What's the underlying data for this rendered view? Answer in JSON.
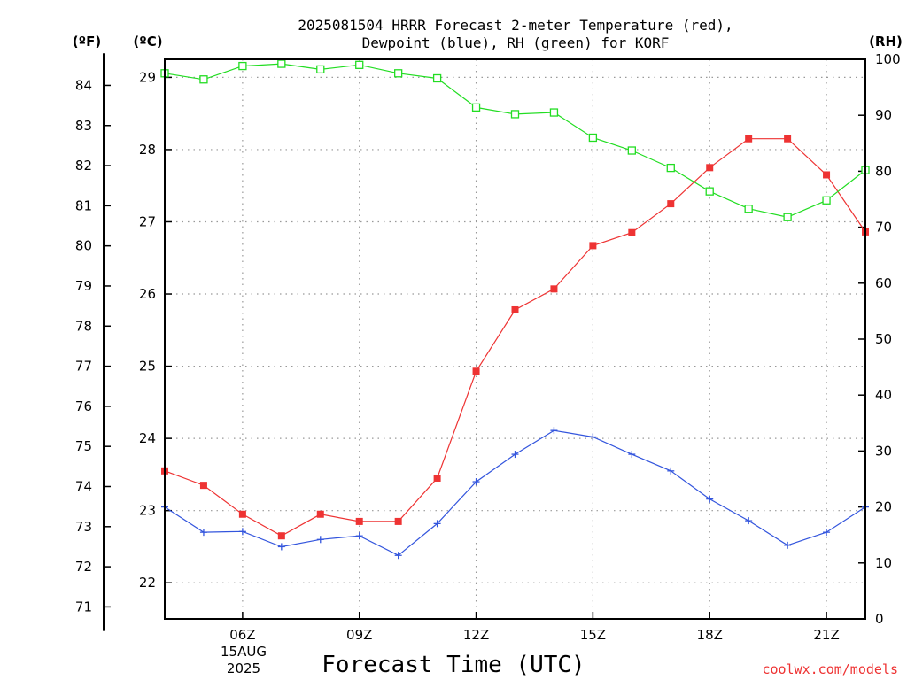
{
  "chart_data": {
    "type": "line",
    "title_line1": "2025081504 HRRR Forecast 2-meter Temperature (red),",
    "title_line2": "Dewpoint (blue), RH (green) for KORF",
    "xlabel": "Forecast Time (UTC)",
    "date_label_day": "15AUG",
    "date_label_year": "2025",
    "unit_f": "(ºF)",
    "unit_c": "(ºC)",
    "unit_rh": "(RH)",
    "credit": "coolwx.com/models",
    "x_hours": [
      4,
      5,
      6,
      7,
      8,
      9,
      10,
      11,
      12,
      13,
      14,
      15,
      16,
      17,
      18,
      19,
      20,
      21,
      22
    ],
    "x_tick_labels": [
      "06Z",
      "09Z",
      "12Z",
      "15Z",
      "18Z",
      "21Z"
    ],
    "x_tick_hours": [
      6,
      9,
      12,
      15,
      18,
      21
    ],
    "x_range_hours": [
      4,
      22
    ],
    "celsius_ticks": [
      22,
      23,
      24,
      25,
      26,
      27,
      28,
      29
    ],
    "celsius_range": [
      21.5,
      29.25
    ],
    "fahrenheit_ticks": [
      71,
      72,
      73,
      74,
      75,
      76,
      77,
      78,
      79,
      80,
      81,
      82,
      83,
      84
    ],
    "rh_ticks": [
      0,
      10,
      20,
      30,
      40,
      50,
      60,
      70,
      80,
      90,
      100
    ],
    "rh_range": [
      0,
      100
    ],
    "grid": true,
    "series": [
      {
        "name": "Temperature",
        "unit": "C",
        "color": "#ee3333",
        "marker": "filled-square",
        "values": [
          23.55,
          23.35,
          22.95,
          22.65,
          22.95,
          22.85,
          22.85,
          23.45,
          24.93,
          25.78,
          26.07,
          26.67,
          26.85,
          27.25,
          27.75,
          28.15,
          28.15,
          27.65,
          26.86
        ]
      },
      {
        "name": "Dewpoint",
        "unit": "C",
        "color": "#3355dd",
        "marker": "plus",
        "values": [
          23.05,
          22.7,
          22.71,
          22.5,
          22.6,
          22.65,
          22.38,
          22.82,
          23.4,
          23.78,
          24.11,
          24.02,
          23.78,
          23.55,
          23.16,
          22.86,
          22.52,
          22.7,
          23.05
        ]
      },
      {
        "name": "RH",
        "unit": "%",
        "color": "#22dd22",
        "marker": "open-square",
        "values": [
          97.5,
          96.4,
          98.8,
          99.2,
          98.2,
          99.0,
          97.5,
          96.6,
          91.4,
          90.2,
          90.5,
          86.0,
          83.7,
          80.6,
          76.4,
          73.3,
          71.8,
          74.8,
          80.2
        ]
      }
    ]
  }
}
